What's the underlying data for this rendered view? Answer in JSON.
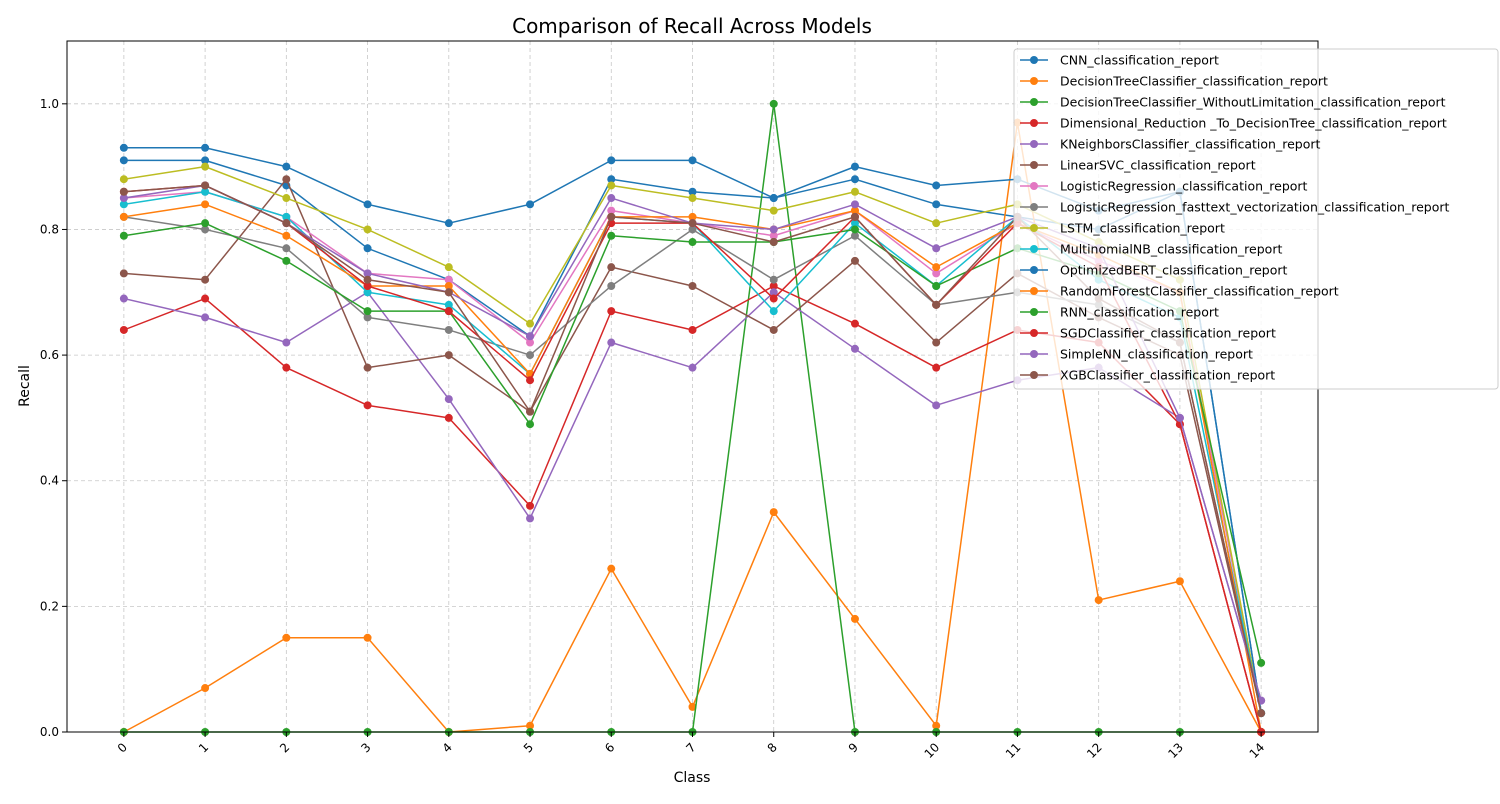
{
  "chart_data": {
    "type": "line",
    "title": "Comparison of Recall Across Models",
    "xlabel": "Class",
    "ylabel": "Recall",
    "x": [
      0,
      1,
      2,
      3,
      4,
      5,
      6,
      7,
      8,
      9,
      10,
      11,
      12,
      13,
      14
    ],
    "x_tick_labels": [
      "0",
      "1",
      "2",
      "3",
      "4",
      "5",
      "6",
      "7",
      "8",
      "9",
      "10",
      "11",
      "12",
      "13",
      "14"
    ],
    "y_ticks": [
      0.0,
      0.2,
      0.4,
      0.6,
      0.8,
      1.0
    ],
    "y_tick_labels": [
      "0.0",
      "0.2",
      "0.4",
      "0.6",
      "0.8",
      "1.0"
    ],
    "xlim": [
      -0.7,
      14.7
    ],
    "ylim": [
      0,
      1.1
    ],
    "grid": true,
    "legend_position": "upper-right",
    "series": [
      {
        "name": "CNN_classification_report",
        "color": "#1f77b4",
        "values": [
          0.91,
          0.91,
          0.87,
          0.77,
          0.72,
          0.63,
          0.88,
          0.86,
          0.85,
          0.88,
          0.84,
          0.82,
          0.8,
          0.86,
          0.03
        ]
      },
      {
        "name": "DecisionTreeClassifier_classification_report",
        "color": "#ff7f0e",
        "values": [
          0.0,
          0.07,
          0.15,
          0.15,
          0.0,
          0.01,
          0.26,
          0.04,
          0.35,
          0.18,
          0.01,
          0.97,
          0.21,
          0.24,
          0.0
        ]
      },
      {
        "name": "DecisionTreeClassifier_WithoutLimitation_classification_report",
        "color": "#2ca02c",
        "values": [
          0.0,
          0.0,
          0.0,
          0.0,
          0.0,
          0.0,
          0.0,
          0.0,
          1.0,
          0.0,
          0.0,
          0.0,
          0.0,
          0.0,
          0.0
        ]
      },
      {
        "name": "Dimensional_Reduction _To_DecisionTree_classification_report",
        "color": "#d62728",
        "values": [
          0.64,
          0.69,
          0.58,
          0.52,
          0.5,
          0.36,
          0.67,
          0.64,
          0.71,
          0.65,
          0.58,
          0.64,
          0.62,
          0.49,
          0.0
        ]
      },
      {
        "name": "KNeighborsClassifier_classification_report",
        "color": "#9467bd",
        "values": [
          0.69,
          0.66,
          0.62,
          0.7,
          0.53,
          0.34,
          0.62,
          0.58,
          0.7,
          0.61,
          0.52,
          0.56,
          0.58,
          0.5,
          0.05
        ]
      },
      {
        "name": "LinearSVC_classification_report",
        "color": "#8c564b",
        "values": [
          0.73,
          0.72,
          0.88,
          0.58,
          0.6,
          0.51,
          0.74,
          0.71,
          0.64,
          0.75,
          0.62,
          0.73,
          0.66,
          0.6,
          0.03
        ]
      },
      {
        "name": "LogisticRegression_classification_report",
        "color": "#e377c2",
        "values": [
          0.85,
          0.86,
          0.82,
          0.73,
          0.72,
          0.62,
          0.83,
          0.81,
          0.79,
          0.83,
          0.73,
          0.81,
          0.75,
          0.7,
          0.03
        ]
      },
      {
        "name": "LogisticRegression_fasttext_vectorization_classification_report",
        "color": "#7f7f7f",
        "values": [
          0.82,
          0.8,
          0.77,
          0.66,
          0.64,
          0.6,
          0.71,
          0.8,
          0.72,
          0.79,
          0.68,
          0.7,
          0.68,
          0.62,
          0.03
        ]
      },
      {
        "name": "LSTM_classification_report",
        "color": "#bcbd22",
        "values": [
          0.88,
          0.9,
          0.85,
          0.8,
          0.74,
          0.65,
          0.87,
          0.85,
          0.83,
          0.86,
          0.81,
          0.84,
          0.78,
          0.72,
          0.03
        ]
      },
      {
        "name": "MultinomialNB_classification_report",
        "color": "#17becf",
        "values": [
          0.84,
          0.86,
          0.82,
          0.7,
          0.68,
          0.57,
          0.82,
          0.81,
          0.67,
          0.81,
          0.71,
          0.82,
          0.72,
          0.66,
          0.03
        ]
      },
      {
        "name": "OptimizedBERT_classification_report",
        "color": "#1f77b4",
        "values": [
          0.93,
          0.93,
          0.9,
          0.84,
          0.81,
          0.84,
          0.91,
          0.91,
          0.85,
          0.9,
          0.87,
          0.88,
          0.83,
          0.86,
          0.03
        ]
      },
      {
        "name": "RandomForestClassifier_classification_report",
        "color": "#ff7f0e",
        "values": [
          0.82,
          0.84,
          0.79,
          0.71,
          0.71,
          0.57,
          0.82,
          0.82,
          0.8,
          0.83,
          0.74,
          0.81,
          0.76,
          0.7,
          0.0
        ]
      },
      {
        "name": "RNN_classification_report",
        "color": "#2ca02c",
        "values": [
          0.79,
          0.81,
          0.75,
          0.67,
          0.67,
          0.49,
          0.79,
          0.78,
          0.78,
          0.8,
          0.71,
          0.77,
          0.73,
          0.67,
          0.11
        ]
      },
      {
        "name": "SGDClassifier_classification_report",
        "color": "#d62728",
        "values": [
          0.86,
          0.87,
          0.81,
          0.71,
          0.67,
          0.56,
          0.81,
          0.81,
          0.69,
          0.82,
          0.68,
          0.81,
          0.74,
          0.49,
          0.0
        ]
      },
      {
        "name": "SimpleNN_classification_report",
        "color": "#9467bd",
        "values": [
          0.85,
          0.87,
          0.81,
          0.73,
          0.7,
          0.63,
          0.85,
          0.81,
          0.8,
          0.84,
          0.77,
          0.82,
          0.77,
          0.5,
          0.05
        ]
      },
      {
        "name": "XGBClassifier_classification_report",
        "color": "#8c564b",
        "values": [
          0.86,
          0.87,
          0.81,
          0.72,
          0.7,
          0.51,
          0.82,
          0.81,
          0.78,
          0.82,
          0.68,
          0.82,
          0.69,
          0.62,
          0.03
        ]
      }
    ]
  }
}
